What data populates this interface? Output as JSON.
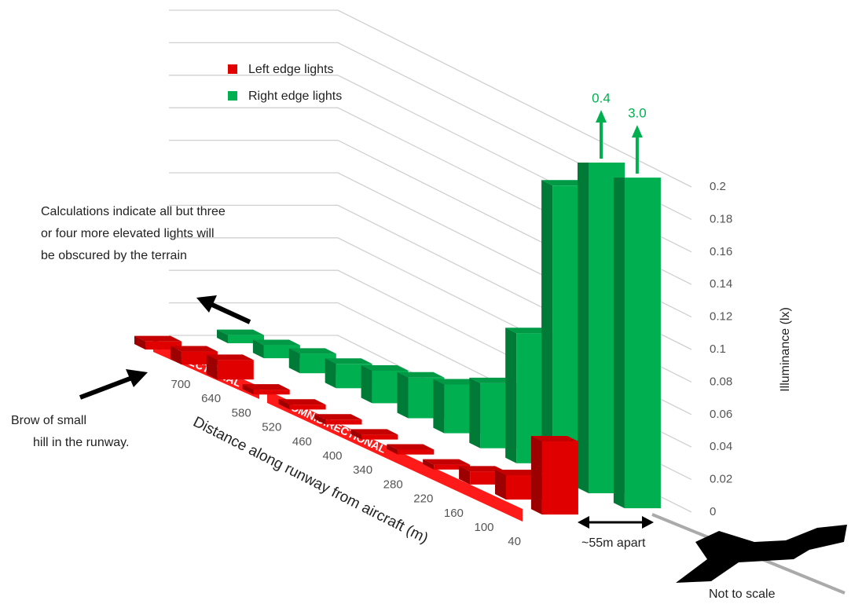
{
  "chart_data": {
    "type": "bar3d",
    "y_label": "Illuminance (lx)",
    "x_label": "Distance along runway from aircraft (m)",
    "categories": [
      "700",
      "640",
      "580",
      "520",
      "460",
      "400",
      "340",
      "280",
      "220",
      "160",
      "100",
      "40"
    ],
    "series": [
      {
        "name": "Left edge lights",
        "color": "#e00000",
        "values": [
          0.005,
          0.008,
          0.012,
          0.003,
          0.003,
          0.003,
          0.003,
          0.003,
          0.003,
          0.008,
          0.015,
          0.045
        ]
      },
      {
        "name": "Right edge lights",
        "color": "#00b050",
        "values": [
          0.005,
          0.008,
          0.012,
          0.015,
          0.02,
          0.025,
          0.03,
          0.04,
          0.08,
          0.18,
          0.4,
          3.0
        ],
        "value_labels": [
          null,
          null,
          null,
          null,
          null,
          null,
          null,
          null,
          null,
          null,
          "0.4",
          "3.0"
        ]
      }
    ],
    "ylim": [
      0,
      0.2
    ],
    "yticks": [
      0,
      0.02,
      0.04,
      0.06,
      0.08,
      0.1,
      0.12,
      0.14,
      0.16,
      0.18,
      0.2
    ],
    "grid": true,
    "annotations": [
      "Calculations indicate all but three",
      "or four more elevated lights will",
      "be obscured by the terrain",
      "Brow of small",
      "hill in the runway.",
      "~55m apart",
      "Not to scale",
      "DIRECTIONAL",
      "OMNIDIRECTIONAL"
    ]
  }
}
